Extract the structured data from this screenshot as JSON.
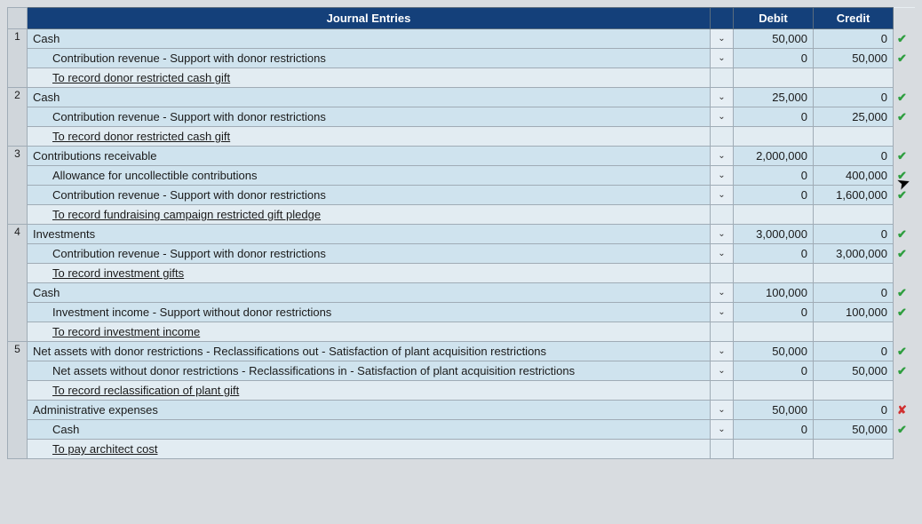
{
  "header": {
    "title": "Journal Entries",
    "debit": "Debit",
    "credit": "Credit"
  },
  "colors": {
    "header_bg": "#14407a",
    "header_fg": "#ffffff",
    "row_bg": "#cfe3ee",
    "memo_bg": "#e2ecf2",
    "border": "#a0acb6",
    "page_bg": "#d8dce0",
    "check": "#2e9e3f",
    "wrong": "#d03030"
  },
  "dropdown_glyph": "⌄",
  "entries": [
    {
      "num": "1",
      "lines": [
        {
          "type": "acct",
          "indent": 0,
          "label": "Cash",
          "debit": "50,000",
          "credit": "0",
          "mark": "check"
        },
        {
          "type": "acct",
          "indent": 1,
          "label": "Contribution revenue - Support with donor restrictions",
          "debit": "0",
          "credit": "50,000",
          "mark": "check"
        },
        {
          "type": "memo",
          "label": "To record donor restricted cash gift"
        }
      ]
    },
    {
      "num": "2",
      "lines": [
        {
          "type": "acct",
          "indent": 0,
          "label": "Cash",
          "debit": "25,000",
          "credit": "0",
          "mark": "check"
        },
        {
          "type": "acct",
          "indent": 1,
          "label": "Contribution revenue - Support with donor restrictions",
          "debit": "0",
          "credit": "25,000",
          "mark": "check"
        },
        {
          "type": "memo",
          "label": "To record donor restricted cash gift"
        }
      ]
    },
    {
      "num": "3",
      "lines": [
        {
          "type": "acct",
          "indent": 0,
          "label": "Contributions receivable",
          "debit": "2,000,000",
          "credit": "0",
          "mark": "check"
        },
        {
          "type": "acct",
          "indent": 1,
          "label": "Allowance for uncollectible contributions",
          "debit": "0",
          "credit": "400,000",
          "mark": "check"
        },
        {
          "type": "acct",
          "indent": 1,
          "label": "Contribution revenue - Support with donor restrictions",
          "debit": "0",
          "credit": "1,600,000",
          "mark": "check"
        },
        {
          "type": "memo",
          "label": "To record fundraising campaign restricted gift pledge"
        }
      ]
    },
    {
      "num": "4",
      "lines": [
        {
          "type": "acct",
          "indent": 0,
          "label": "Investments",
          "debit": "3,000,000",
          "credit": "0",
          "mark": "check"
        },
        {
          "type": "acct",
          "indent": 1,
          "label": "Contribution revenue - Support with donor restrictions",
          "debit": "0",
          "credit": "3,000,000",
          "mark": "check"
        },
        {
          "type": "memo",
          "label": "To record investment gifts"
        },
        {
          "type": "acct",
          "indent": 0,
          "label": "Cash",
          "debit": "100,000",
          "credit": "0",
          "mark": "check"
        },
        {
          "type": "acct",
          "indent": 1,
          "label": "Investment income - Support without donor restrictions",
          "debit": "0",
          "credit": "100,000",
          "mark": "check"
        },
        {
          "type": "memo",
          "label": "To record investment income"
        }
      ]
    },
    {
      "num": "5",
      "lines": [
        {
          "type": "acct",
          "indent": 0,
          "label": "Net assets with donor restrictions - Reclassifications out - Satisfaction of plant acquisition restrictions",
          "debit": "50,000",
          "credit": "0",
          "mark": "check"
        },
        {
          "type": "acct",
          "indent": 1,
          "label": "Net assets without donor restrictions - Reclassifications in - Satisfaction of plant acquisition restrictions",
          "debit": "0",
          "credit": "50,000",
          "mark": "check"
        },
        {
          "type": "memo",
          "label": "To record reclassification of plant gift"
        },
        {
          "type": "acct",
          "indent": 0,
          "label": "Administrative expenses",
          "debit": "50,000",
          "credit": "0",
          "mark": "wrong"
        },
        {
          "type": "acct",
          "indent": 2,
          "label": "Cash",
          "debit": "0",
          "credit": "50,000",
          "mark": "check"
        },
        {
          "type": "memo",
          "label": "To pay architect cost"
        }
      ]
    }
  ]
}
